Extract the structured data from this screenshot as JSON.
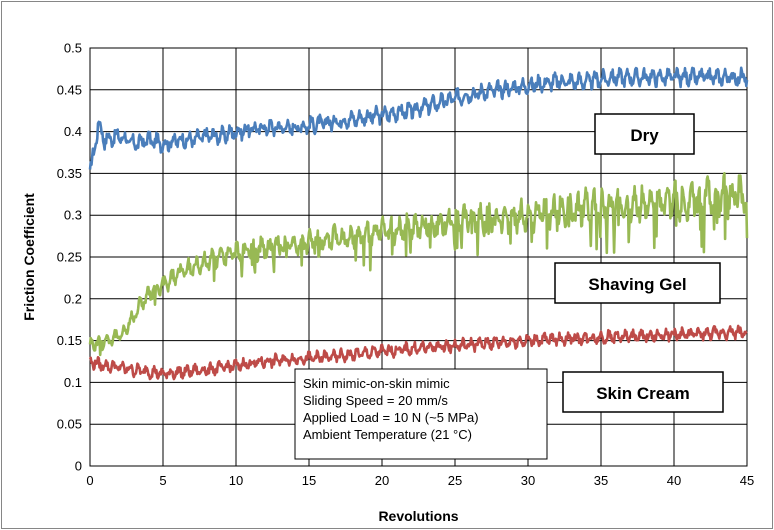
{
  "chart_data": {
    "type": "line",
    "title": "",
    "xlabel": "Revolutions",
    "ylabel": "Friction Coefficient",
    "xlim": [
      0,
      45
    ],
    "ylim": [
      0,
      0.5
    ],
    "xticks": [
      "0",
      "5",
      "10",
      "15",
      "20",
      "25",
      "30",
      "35",
      "40",
      "45"
    ],
    "yticks": [
      "0",
      "0.05",
      "0.1",
      "0.15",
      "0.2",
      "0.25",
      "0.3",
      "0.35",
      "0.4",
      "0.45",
      "0.5"
    ],
    "grid": true,
    "legend": "none",
    "series": [
      {
        "name": "Dry",
        "color": "#4a7ebb",
        "x": [
          0,
          0.3,
          0.6,
          1,
          2,
          3,
          4,
          5,
          6,
          7,
          8,
          9,
          10,
          12,
          14,
          16,
          18,
          20,
          22,
          24,
          26,
          28,
          30,
          32,
          34,
          36,
          38,
          40,
          42,
          44,
          45
        ],
        "values": [
          0.35,
          0.38,
          0.41,
          0.39,
          0.395,
          0.385,
          0.39,
          0.385,
          0.39,
          0.39,
          0.395,
          0.395,
          0.4,
          0.405,
          0.405,
          0.41,
          0.415,
          0.42,
          0.425,
          0.435,
          0.445,
          0.45,
          0.455,
          0.46,
          0.46,
          0.465,
          0.465,
          0.465,
          0.465,
          0.465,
          0.465
        ]
      },
      {
        "name": "Shaving Gel",
        "color": "#98b954",
        "x": [
          0,
          1,
          2,
          2.5,
          3,
          3.5,
          4,
          5,
          6,
          8,
          10,
          12,
          14,
          16,
          18,
          20,
          22,
          24,
          26,
          28,
          30,
          32,
          34,
          36,
          38,
          40,
          42,
          44,
          45
        ],
        "values": [
          0.145,
          0.15,
          0.155,
          0.165,
          0.18,
          0.195,
          0.205,
          0.215,
          0.23,
          0.245,
          0.255,
          0.26,
          0.265,
          0.27,
          0.275,
          0.28,
          0.285,
          0.29,
          0.295,
          0.295,
          0.3,
          0.305,
          0.31,
          0.31,
          0.315,
          0.315,
          0.32,
          0.325,
          0.325
        ]
      },
      {
        "name": "Skin Cream",
        "color": "#be4b48",
        "x": [
          0,
          1,
          2,
          3,
          4,
          5,
          6,
          8,
          10,
          12,
          14,
          16,
          18,
          20,
          22,
          24,
          26,
          28,
          30,
          32,
          34,
          36,
          38,
          40,
          42,
          44,
          45
        ],
        "values": [
          0.125,
          0.12,
          0.118,
          0.115,
          0.113,
          0.11,
          0.112,
          0.115,
          0.12,
          0.125,
          0.128,
          0.13,
          0.133,
          0.137,
          0.14,
          0.143,
          0.145,
          0.148,
          0.15,
          0.152,
          0.153,
          0.155,
          0.155,
          0.157,
          0.158,
          0.16,
          0.16
        ]
      }
    ],
    "annotations": [
      {
        "text": "Dry"
      },
      {
        "text": "Shaving Gel"
      },
      {
        "text": "Skin Cream"
      }
    ],
    "info_box": [
      "Skin mimic-on-skin mimic",
      "Sliding Speed  = 20 mm/s",
      "Applied Load = 10 N (~5 MPa)",
      "Ambient Temperature  (21 °C)"
    ]
  }
}
